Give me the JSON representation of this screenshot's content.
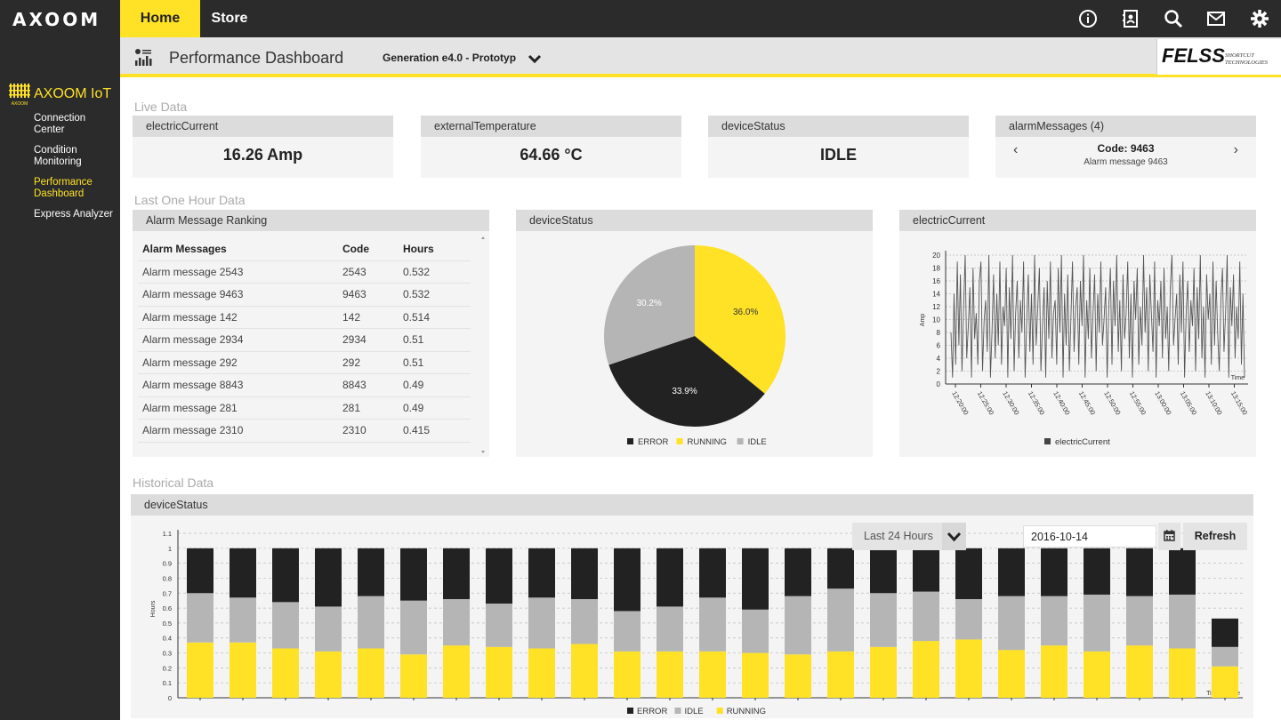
{
  "brand": {
    "logo": "AXOOM"
  },
  "topnav": {
    "home": "Home",
    "store": "Store",
    "icons": [
      "info-icon",
      "contacts-icon",
      "search-icon",
      "mail-icon",
      "gear-icon"
    ]
  },
  "sidebar": {
    "title": "AXOOM IoT",
    "logo_text": "AXOOM",
    "items": [
      {
        "label": "Connection Center"
      },
      {
        "label": "Condition Monitoring"
      },
      {
        "label": "Performance Dashboard",
        "active": true
      },
      {
        "label": "Express Analyzer"
      }
    ]
  },
  "header": {
    "title": "Performance Dashboard",
    "generation": "Generation e4.0 - Prototyp",
    "partner_logo": "FELSS",
    "partner_sub1": "SHORTCUT",
    "partner_sub2": "TECHNOLOGIES"
  },
  "live": {
    "section": "Live Data",
    "electric": {
      "label": "electricCurrent",
      "value": "16.26 Amp"
    },
    "temperature": {
      "label": "externalTemperature",
      "value": "64.66 °C"
    },
    "status": {
      "label": "deviceStatus",
      "value": "IDLE"
    },
    "alarms": {
      "label": "alarmMessages (4)",
      "code": "Code: 9463",
      "message": "Alarm message 9463",
      "prev": "‹",
      "next": "›"
    }
  },
  "hour": {
    "section": "Last One Hour Data",
    "ranking": {
      "title": "Alarm Message Ranking",
      "columns": [
        "Alarm Messages",
        "Code",
        "Hours"
      ],
      "rows": [
        [
          "Alarm message 2543",
          "2543",
          "0.532"
        ],
        [
          "Alarm message 9463",
          "9463",
          "0.532"
        ],
        [
          "Alarm message 142",
          "142",
          "0.514"
        ],
        [
          "Alarm message 2934",
          "2934",
          "0.51"
        ],
        [
          "Alarm message 292",
          "292",
          "0.51"
        ],
        [
          "Alarm message 8843",
          "8843",
          "0.49"
        ],
        [
          "Alarm message 281",
          "281",
          "0.49"
        ],
        [
          "Alarm message 2310",
          "2310",
          "0.415"
        ]
      ]
    },
    "pie_title": "deviceStatus",
    "line_title": "electricCurrent"
  },
  "historical": {
    "section": "Historical Data",
    "title": "deviceStatus",
    "range": "Last 24 Hours",
    "date": "2016-10-14",
    "refresh": "Refresh"
  },
  "colors": {
    "accent": "#ffe126",
    "error": "#222222",
    "idle": "#b5b5b5",
    "running": "#ffe126"
  },
  "chart_data": [
    {
      "type": "pie",
      "title": "",
      "categories": [
        "ERROR",
        "RUNNING",
        "IDLE"
      ],
      "values": [
        33.9,
        36.0,
        30.2
      ],
      "labels": [
        "33.9%",
        "36.0%",
        "30.2%"
      ],
      "legend": "bottom"
    },
    {
      "type": "line",
      "title": "",
      "xlabel": "Time",
      "ylabel": "Amp",
      "ylim": [
        0,
        20
      ],
      "yticks": [
        0,
        2,
        4,
        6,
        8,
        10,
        12,
        14,
        16,
        18,
        20
      ],
      "xticks": [
        "12:20:00",
        "12:25:00",
        "12:30:00",
        "12:35:00",
        "12:40:00",
        "12:45:00",
        "12:50:00",
        "12:55:00",
        "13:00:00",
        "13:05:00",
        "13:10:00",
        "13:15:00"
      ],
      "series": [
        {
          "name": "electricCurrent",
          "values": [
            8,
            1,
            14,
            3,
            19,
            6,
            17,
            2,
            12,
            20,
            4,
            9,
            15,
            1,
            18,
            7,
            11,
            3,
            16,
            19,
            2,
            10,
            13,
            5,
            20,
            1,
            8,
            17,
            4,
            14,
            6,
            19,
            3,
            12,
            9,
            18,
            1,
            15,
            7,
            20,
            2,
            11,
            16,
            4,
            13,
            8,
            19,
            1,
            10,
            17,
            5,
            14,
            3,
            20,
            6,
            12,
            18,
            2,
            9,
            15,
            1,
            16,
            7,
            19,
            4,
            11,
            13,
            3,
            18,
            8,
            20,
            1,
            14,
            6,
            17,
            2,
            10,
            19,
            5,
            12,
            15,
            3,
            16,
            9,
            20,
            1,
            13,
            7,
            18,
            4,
            11,
            17,
            2,
            14,
            8,
            19,
            6,
            10,
            15,
            1,
            12,
            18,
            3,
            16,
            9,
            20,
            5,
            13,
            2,
            17,
            7,
            11,
            19,
            4,
            14,
            1,
            16,
            10,
            18,
            3,
            12,
            6,
            20,
            8,
            15,
            2,
            17,
            11,
            5,
            19,
            1,
            13,
            9,
            16,
            4,
            18,
            7,
            12,
            2,
            15,
            20,
            6,
            10,
            14,
            3,
            17,
            8,
            19,
            1,
            11,
            16,
            5,
            13,
            9,
            18,
            2,
            15,
            7,
            20,
            4,
            12,
            1,
            17,
            10,
            14,
            3,
            19,
            6,
            16,
            8,
            2,
            13,
            18,
            5,
            11,
            20,
            1,
            15,
            9,
            17,
            4,
            12,
            7,
            19,
            3,
            14,
            1
          ]
        }
      ],
      "legend": "bottom"
    },
    {
      "type": "bar",
      "title": "",
      "xlabel": "Time Range",
      "ylabel": "Hours",
      "ylim": [
        0,
        1.1
      ],
      "yticks": [
        0,
        0.1,
        0.2,
        0.3,
        0.4,
        0.5,
        0.6,
        0.7,
        0.8,
        0.9,
        1,
        1.1
      ],
      "stacked": true,
      "series": [
        {
          "name": "RUNNING",
          "values": [
            0.37,
            0.37,
            0.33,
            0.31,
            0.33,
            0.29,
            0.35,
            0.34,
            0.33,
            0.36,
            0.31,
            0.31,
            0.31,
            0.3,
            0.29,
            0.31,
            0.34,
            0.38,
            0.39,
            0.32,
            0.35,
            0.31,
            0.35,
            0.33,
            0.21
          ]
        },
        {
          "name": "IDLE",
          "values": [
            0.33,
            0.3,
            0.31,
            0.3,
            0.35,
            0.36,
            0.31,
            0.29,
            0.34,
            0.3,
            0.27,
            0.3,
            0.36,
            0.29,
            0.39,
            0.42,
            0.36,
            0.33,
            0.27,
            0.36,
            0.33,
            0.38,
            0.33,
            0.36,
            0.13
          ]
        },
        {
          "name": "ERROR",
          "values": [
            0.3,
            0.33,
            0.36,
            0.39,
            0.32,
            0.35,
            0.34,
            0.37,
            0.33,
            0.34,
            0.42,
            0.39,
            0.33,
            0.41,
            0.32,
            0.27,
            0.3,
            0.29,
            0.34,
            0.32,
            0.32,
            0.31,
            0.32,
            0.31,
            0.19
          ]
        }
      ],
      "legend": "bottom"
    }
  ]
}
